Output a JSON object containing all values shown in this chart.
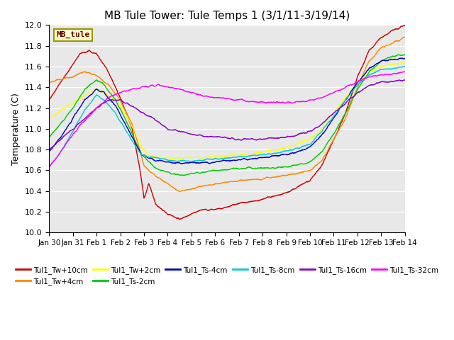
{
  "title": "MB Tule Tower: Tule Temps 1 (3/1/11-3/19/14)",
  "ylabel": "Temperature (C)",
  "ylim": [
    10.0,
    12.0
  ],
  "yticks": [
    10.0,
    10.2,
    10.4,
    10.6,
    10.8,
    11.0,
    11.2,
    11.4,
    11.6,
    11.8,
    12.0
  ],
  "background_color": "#e8e8e8",
  "series_colors": {
    "Tul1_Tw+10cm": "#cc0000",
    "Tul1_Tw+4cm": "#ff8800",
    "Tul1_Tw+2cm": "#ffff00",
    "Tul1_Ts-2cm": "#00cc00",
    "Tul1_Ts-4cm": "#0000cc",
    "Tul1_Ts-8cm": "#00cccc",
    "Tul1_Ts-16cm": "#8800cc",
    "Tul1_Ts-32cm": "#ff00ff"
  },
  "legend_label": "MB_tule",
  "x_tick_labels": [
    "Jan 30",
    "Jan 31",
    "Feb 1",
    "Feb 2",
    "Feb 3",
    "Feb 4",
    "Feb 5",
    "Feb 6",
    "Feb 7",
    "Feb 8",
    "Feb 9",
    "Feb 10",
    "Feb 11",
    "Feb 12",
    "Feb 13",
    "Feb 14"
  ]
}
